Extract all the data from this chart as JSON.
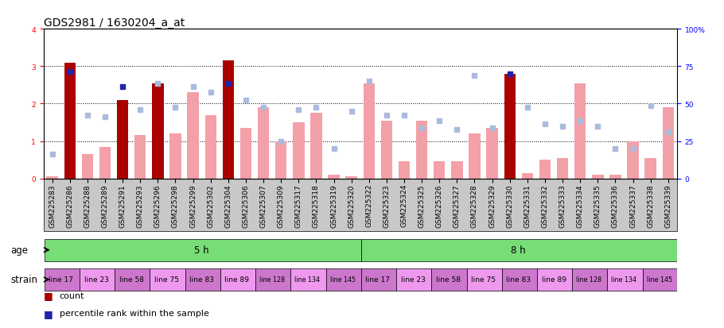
{
  "title": "GDS2981 / 1630204_a_at",
  "samples": [
    "GSM225283",
    "GSM225286",
    "GSM225288",
    "GSM225289",
    "GSM225291",
    "GSM225293",
    "GSM225296",
    "GSM225298",
    "GSM225299",
    "GSM225302",
    "GSM225304",
    "GSM225306",
    "GSM225307",
    "GSM225309",
    "GSM225317",
    "GSM225318",
    "GSM225319",
    "GSM225320",
    "GSM225322",
    "GSM225323",
    "GSM225324",
    "GSM225325",
    "GSM225326",
    "GSM225327",
    "GSM225328",
    "GSM225329",
    "GSM225330",
    "GSM225331",
    "GSM225332",
    "GSM225333",
    "GSM225334",
    "GSM225335",
    "GSM225336",
    "GSM225337",
    "GSM225338",
    "GSM225339"
  ],
  "bar_values": [
    0.05,
    3.1,
    0.65,
    0.85,
    2.1,
    1.15,
    2.55,
    1.2,
    2.3,
    1.7,
    3.15,
    1.35,
    1.9,
    1.0,
    1.5,
    1.75,
    0.1,
    0.05,
    2.55,
    1.55,
    0.45,
    1.55,
    0.45,
    0.45,
    1.2,
    1.35,
    2.8,
    0.15,
    0.5,
    0.55,
    2.55,
    0.1,
    0.1,
    1.0,
    0.55,
    1.9
  ],
  "bar_is_dark": [
    false,
    true,
    false,
    false,
    true,
    false,
    true,
    false,
    false,
    false,
    true,
    false,
    false,
    false,
    false,
    false,
    false,
    false,
    false,
    false,
    false,
    false,
    false,
    false,
    false,
    false,
    true,
    false,
    false,
    false,
    false,
    false,
    false,
    false,
    false,
    false
  ],
  "rank_values": [
    0.65,
    2.85,
    1.7,
    1.65,
    2.45,
    1.85,
    2.55,
    1.9,
    2.45,
    2.3,
    2.55,
    2.1,
    1.9,
    1.0,
    1.85,
    1.9,
    0.8,
    1.8,
    2.6,
    1.7,
    1.7,
    1.35,
    1.55,
    1.3,
    2.75,
    1.35,
    2.8,
    1.9,
    1.45,
    1.4,
    1.55,
    1.4,
    0.8,
    0.8,
    1.95,
    1.25
  ],
  "rank_is_dark": [
    false,
    true,
    false,
    false,
    true,
    false,
    false,
    false,
    false,
    false,
    true,
    false,
    false,
    false,
    false,
    false,
    false,
    false,
    false,
    false,
    false,
    false,
    false,
    false,
    false,
    false,
    true,
    false,
    false,
    false,
    false,
    false,
    false,
    false,
    false,
    false
  ],
  "strain_groups": [
    {
      "label": "line 17",
      "start": 0,
      "end": 2,
      "color": "#CC77CC"
    },
    {
      "label": "line 23",
      "start": 2,
      "end": 4,
      "color": "#EE99EE"
    },
    {
      "label": "line 58",
      "start": 4,
      "end": 6,
      "color": "#CC77CC"
    },
    {
      "label": "line 75",
      "start": 6,
      "end": 8,
      "color": "#EE99EE"
    },
    {
      "label": "line 83",
      "start": 8,
      "end": 10,
      "color": "#CC77CC"
    },
    {
      "label": "line 89",
      "start": 10,
      "end": 12,
      "color": "#EE99EE"
    },
    {
      "label": "line 128",
      "start": 12,
      "end": 14,
      "color": "#CC77CC"
    },
    {
      "label": "line 134",
      "start": 14,
      "end": 16,
      "color": "#EE99EE"
    },
    {
      "label": "line 145",
      "start": 16,
      "end": 18,
      "color": "#CC77CC"
    },
    {
      "label": "line 17",
      "start": 18,
      "end": 20,
      "color": "#CC77CC"
    },
    {
      "label": "line 23",
      "start": 20,
      "end": 22,
      "color": "#EE99EE"
    },
    {
      "label": "line 58",
      "start": 22,
      "end": 24,
      "color": "#CC77CC"
    },
    {
      "label": "line 75",
      "start": 24,
      "end": 26,
      "color": "#EE99EE"
    },
    {
      "label": "line 83",
      "start": 26,
      "end": 28,
      "color": "#CC77CC"
    },
    {
      "label": "line 89",
      "start": 28,
      "end": 30,
      "color": "#EE99EE"
    },
    {
      "label": "line 128",
      "start": 30,
      "end": 32,
      "color": "#CC77CC"
    },
    {
      "label": "line 134",
      "start": 32,
      "end": 34,
      "color": "#EE99EE"
    },
    {
      "label": "line 145",
      "start": 34,
      "end": 36,
      "color": "#CC77CC"
    }
  ],
  "ylim_left": [
    0,
    4
  ],
  "ylim_right": [
    0,
    100
  ],
  "yticks_left": [
    0,
    1,
    2,
    3,
    4
  ],
  "yticks_right": [
    0,
    25,
    50,
    75,
    100
  ],
  "bar_color_light": "#F4A0A8",
  "bar_color_dark": "#AA0000",
  "rank_color_light": "#AABBDD",
  "rank_color_dark": "#2222AA",
  "age_color": "#77DD77",
  "xtick_bg": "#CCCCCC",
  "bg_color": "#FFFFFF",
  "title_fontsize": 10,
  "tick_fontsize": 6.5,
  "annot_fontsize": 8.5,
  "legend_fontsize": 8
}
